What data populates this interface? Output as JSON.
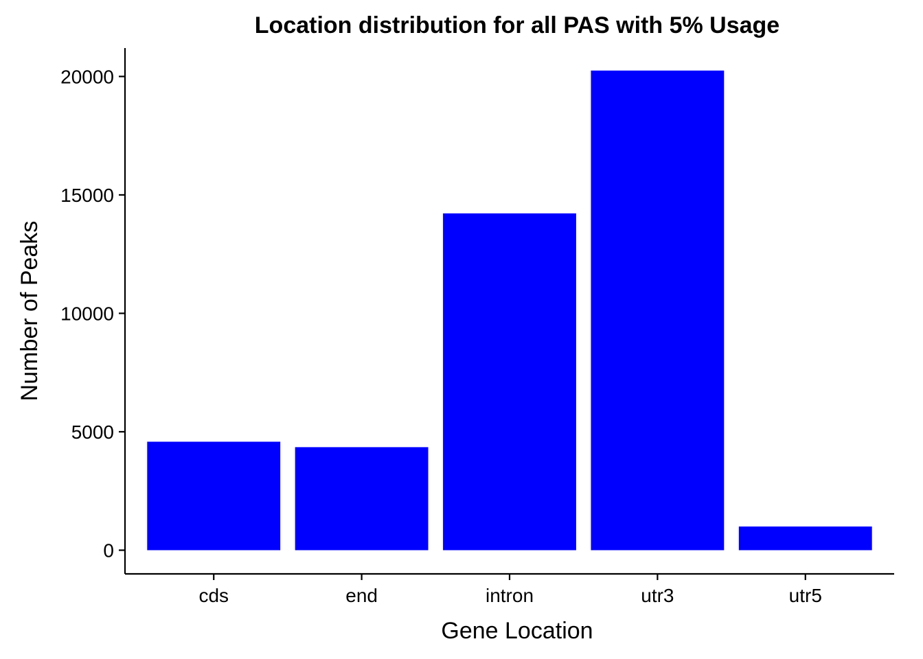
{
  "chart_data": {
    "type": "bar",
    "title": "Location distribution for all PAS with 5% Usage",
    "xlabel": "Gene Location",
    "ylabel": "Number of Peaks",
    "categories": [
      "cds",
      "end",
      "intron",
      "utr3",
      "utr5"
    ],
    "values": [
      4580,
      4350,
      14220,
      20250,
      1000
    ],
    "ylim": [
      -1000,
      21200
    ],
    "yticks": [
      0,
      5000,
      10000,
      15000,
      20000
    ],
    "ytick_labels": [
      "0",
      "5000",
      "10000",
      "15000",
      "20000"
    ],
    "bar_color": "#0000ff",
    "grid": false,
    "legend": "none"
  }
}
